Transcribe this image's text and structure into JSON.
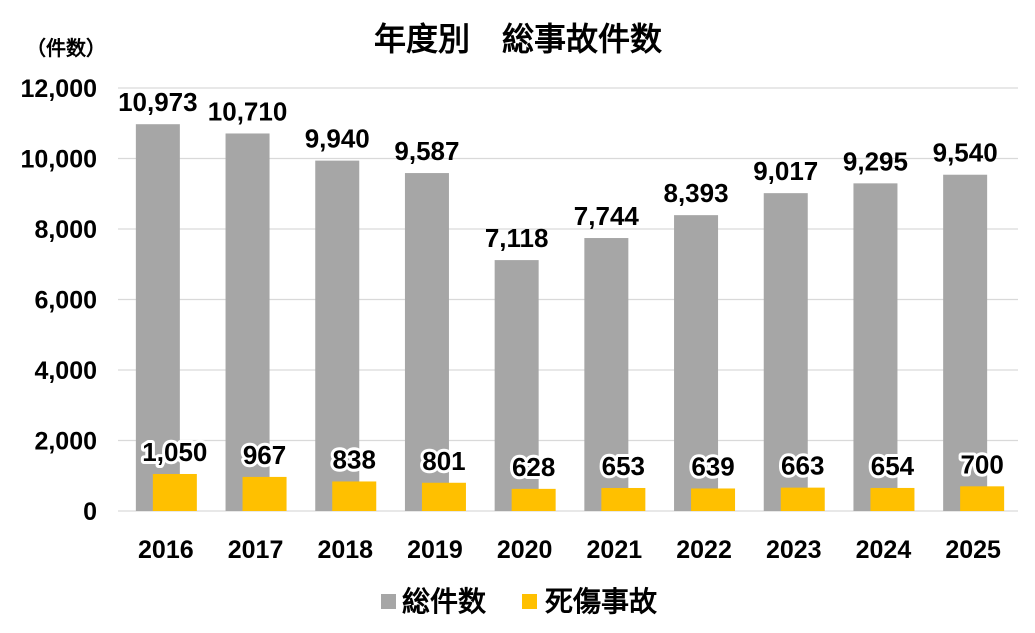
{
  "chart_data": {
    "type": "bar",
    "title": "年度別　総事故件数",
    "ylabel": "（件数）",
    "categories": [
      "2016",
      "2017",
      "2018",
      "2019",
      "2020",
      "2021",
      "2022",
      "2023",
      "2024",
      "2025"
    ],
    "series": [
      {
        "name": "総件数",
        "color": "#a6a6a6",
        "values": [
          10973,
          10710,
          9940,
          9587,
          7118,
          7744,
          8393,
          9017,
          9295,
          9540
        ]
      },
      {
        "name": "死傷事故",
        "color": "#ffc000",
        "values": [
          1050,
          967,
          838,
          801,
          628,
          653,
          639,
          663,
          654,
          700
        ]
      }
    ],
    "ylim": [
      0,
      12000
    ],
    "yticks": [
      0,
      2000,
      4000,
      6000,
      8000,
      10000,
      12000
    ],
    "grid": true,
    "legend": "bottom",
    "data_labels": true
  }
}
